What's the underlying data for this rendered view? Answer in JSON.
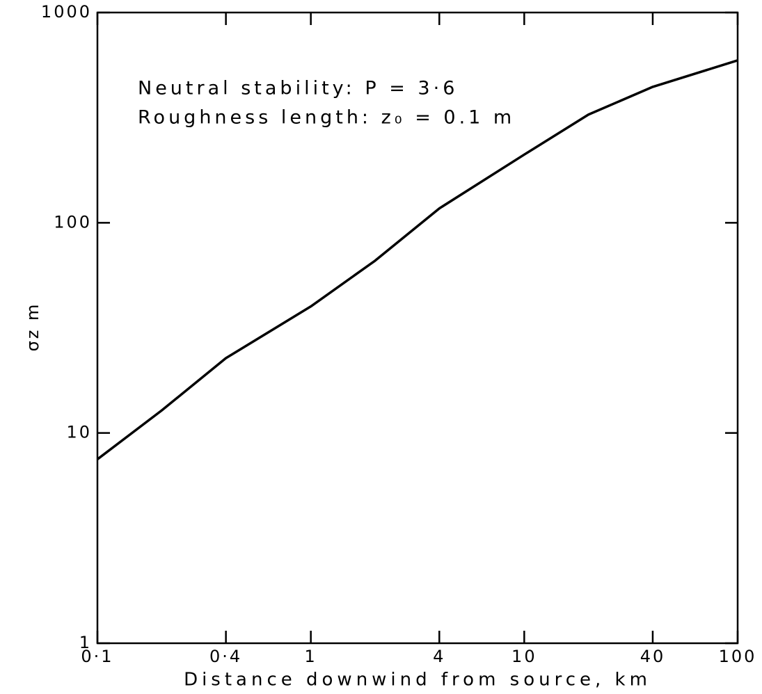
{
  "chart_data": {
    "type": "line",
    "x": [
      0.1,
      0.2,
      0.4,
      1,
      2,
      4,
      10,
      20,
      40,
      100
    ],
    "series": [
      {
        "color": "#000000",
        "values": [
          7.5,
          12.8,
          22.7,
          40,
          66,
          117,
          211,
          327,
          443,
          592
        ]
      }
    ],
    "xlog": true,
    "ylog": true,
    "xlim": [
      0.1,
      100
    ],
    "ylim": [
      1,
      1000
    ],
    "xticks": [
      {
        "value": 0.1,
        "label": "0·1"
      },
      {
        "value": 0.4,
        "label": "0·4"
      },
      1,
      4,
      10,
      40,
      100
    ],
    "yticks": [
      1,
      10,
      100,
      1000
    ],
    "xlabel": "Distance downwind from source, km",
    "ylabel": "σz m",
    "annotations": [
      "Neutral stability: P = 3·6",
      "Roughness length: z₀ = 0.1 m"
    ]
  }
}
